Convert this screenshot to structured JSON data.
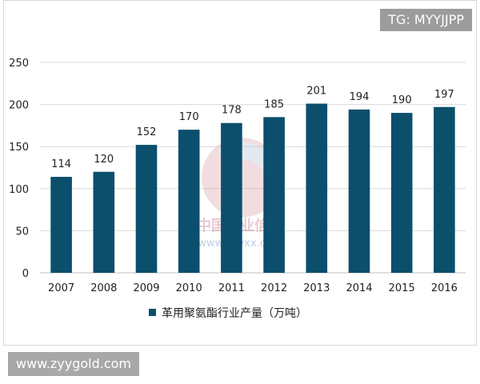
{
  "badges": {
    "tg": "TG: MYYJJPP",
    "site": "www.zyygold.com"
  },
  "watermark": {
    "line1": "中国产业信息",
    "line2": "www.chyxx.com"
  },
  "colors": {
    "bar": "#0b4f6c",
    "grid": "#d9d9d9",
    "badge": "#9c9c9c"
  },
  "chart_data": {
    "type": "bar",
    "categories": [
      "2007",
      "2008",
      "2009",
      "2010",
      "2011",
      "2012",
      "2013",
      "2014",
      "2015",
      "2016"
    ],
    "series": [
      {
        "name": "革用聚氨酯行业产量（万吨）",
        "values": [
          114,
          120,
          152,
          170,
          178,
          185,
          201,
          194,
          190,
          197
        ]
      }
    ],
    "ylim": [
      0,
      250
    ],
    "yticks": [
      0,
      50,
      100,
      150,
      200,
      250
    ],
    "grid": true,
    "legend": "bottom",
    "data_labels": true
  }
}
